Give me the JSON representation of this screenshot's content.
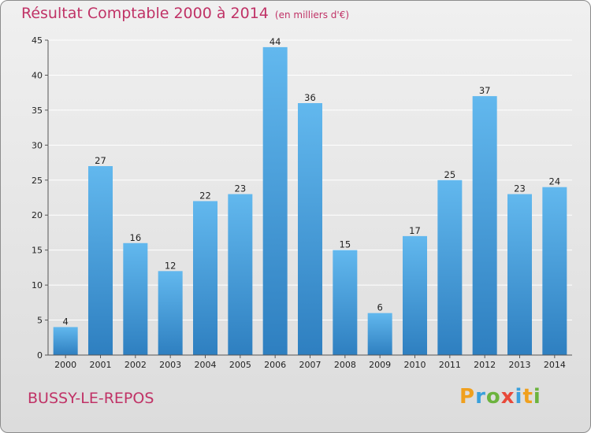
{
  "chart_data": {
    "type": "bar",
    "title": "Résultat Comptable 2000 à 2014",
    "subtitle": "(en milliers d'€)",
    "categories": [
      "2000",
      "2001",
      "2002",
      "2003",
      "2004",
      "2005",
      "2006",
      "2007",
      "2008",
      "2009",
      "2010",
      "2011",
      "2012",
      "2013",
      "2014"
    ],
    "values": [
      4,
      27,
      16,
      12,
      22,
      23,
      44,
      36,
      15,
      6,
      17,
      25,
      37,
      23,
      24
    ],
    "ylim": [
      0,
      45
    ],
    "yticks": [
      0,
      5,
      10,
      15,
      20,
      25,
      30,
      35,
      40,
      45
    ],
    "xlabel": "",
    "ylabel": "",
    "grid": true
  },
  "place_name": "BUSSY-LE-REPOS",
  "brand": {
    "letters": [
      "P",
      "r",
      "o",
      "x",
      "i",
      "t",
      "i"
    ],
    "colors": [
      "#f0a01e",
      "#3aa0dc",
      "#6cb33e",
      "#e8493a",
      "#3aa0dc",
      "#f0a01e",
      "#6cb33e"
    ]
  },
  "colors": {
    "title": "#c03266",
    "bar_top": "#62b8ee",
    "bar_bottom": "#2e7fc0",
    "grid": "#ffffff",
    "axis": "#555555"
  }
}
